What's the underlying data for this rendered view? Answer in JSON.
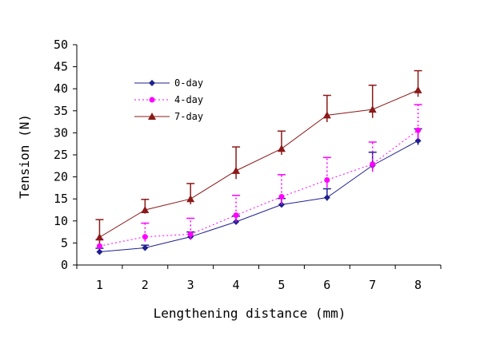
{
  "chart_data": {
    "type": "line",
    "title": "",
    "xlabel": "Lengthening distance (mm)",
    "ylabel": "Tension (N)",
    "categories": [
      "1",
      "2",
      "3",
      "4",
      "5",
      "6",
      "7",
      "8"
    ],
    "ylim": [
      0,
      50
    ],
    "yticks": [
      "0",
      "5",
      "10",
      "15",
      "20",
      "25",
      "30",
      "35",
      "40",
      "45",
      "50"
    ],
    "grid": false,
    "legend_position": "top-left",
    "series": [
      {
        "name": "0-day",
        "color": "#1f1f8f",
        "marker": "diamond",
        "line_style": "solid",
        "values": [
          3.0,
          3.9,
          6.4,
          9.8,
          13.7,
          15.3,
          22.6,
          28.2
        ],
        "errors": [
          0.8,
          0.6,
          1.1,
          1.3,
          1.4,
          2.0,
          3.0,
          2.7
        ]
      },
      {
        "name": "4-day",
        "color": "#ff00ff",
        "marker": "circle",
        "line_style": "dotted",
        "values": [
          4.3,
          6.4,
          7.0,
          11.3,
          15.5,
          19.3,
          22.9,
          30.6
        ],
        "errors": [
          1.5,
          3.1,
          3.6,
          4.5,
          5.0,
          5.1,
          5.0,
          5.8
        ]
      },
      {
        "name": "7-day",
        "color": "#8b1a1a",
        "marker": "triangle",
        "line_style": "solid",
        "values": [
          6.3,
          12.5,
          15.0,
          21.4,
          26.4,
          34.0,
          35.3,
          39.7
        ],
        "errors": [
          4.0,
          2.4,
          3.5,
          5.4,
          4.0,
          4.5,
          5.5,
          4.4
        ]
      }
    ]
  }
}
